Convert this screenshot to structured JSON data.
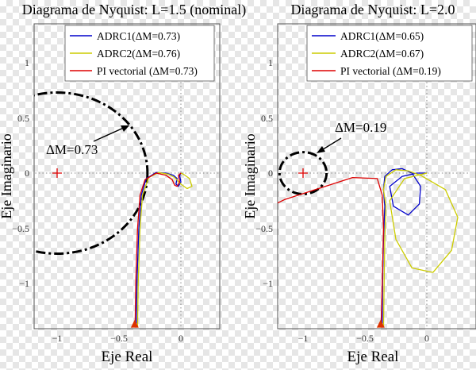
{
  "xlabel": "Eje Real",
  "ylabel": "Eje Imaginario",
  "chart_data": [
    {
      "type": "line",
      "title": "Diagrama de Nyquist: L=1.5 (nominal)",
      "xlabel": "Eje Real",
      "ylabel": "Eje Imaginario",
      "xlim": [
        -1.35,
        0.35
      ],
      "ylim": [
        -1.4,
        1.05
      ],
      "xticks": [
        -1,
        -0.5,
        0
      ],
      "xtick_labels": [
        "−1",
        "−0.5",
        "0"
      ],
      "yticks": [
        1,
        0.5,
        0,
        -0.5,
        -1
      ],
      "ytick_labels": [
        "1",
        "0.5",
        "0",
        "−0.5",
        "−1"
      ],
      "grid": "dotted lines at x=0 and y=0",
      "legend_position": "top",
      "critical_point": {
        "x": -1,
        "y": 0,
        "marker": "+"
      },
      "series": [
        {
          "name": "ADRC1(ΔM=0.73)",
          "color": "#0000cc",
          "points": [
            [
              -0.36,
              -1.4
            ],
            [
              -0.355,
              -1.0
            ],
            [
              -0.34,
              -0.5
            ],
            [
              -0.32,
              -0.2
            ],
            [
              -0.28,
              -0.05
            ],
            [
              -0.2,
              0.005
            ],
            [
              -0.12,
              0.0
            ],
            [
              -0.06,
              -0.02
            ],
            [
              -0.03,
              -0.05
            ],
            [
              -0.04,
              -0.1
            ],
            [
              -0.02,
              -0.12
            ],
            [
              0.0,
              -0.08
            ],
            [
              -0.01,
              -0.02
            ],
            [
              0.0,
              0.0
            ]
          ]
        },
        {
          "name": "ADRC2(ΔM=0.76)",
          "color": "#cccc00",
          "points": [
            [
              -0.35,
              -1.4
            ],
            [
              -0.345,
              -1.0
            ],
            [
              -0.33,
              -0.5
            ],
            [
              -0.31,
              -0.2
            ],
            [
              -0.26,
              -0.04
            ],
            [
              -0.18,
              0.005
            ],
            [
              -0.1,
              -0.01
            ],
            [
              -0.05,
              -0.04
            ],
            [
              0.0,
              -0.1
            ],
            [
              0.05,
              -0.14
            ],
            [
              0.09,
              -0.12
            ],
            [
              0.07,
              -0.05
            ],
            [
              0.02,
              -0.01
            ],
            [
              0.0,
              0.0
            ]
          ]
        },
        {
          "name": "PI vectorial (ΔM=0.73)",
          "color": "#dd0000",
          "points": [
            [
              -0.37,
              -1.4
            ],
            [
              -0.365,
              -1.0
            ],
            [
              -0.35,
              -0.5
            ],
            [
              -0.33,
              -0.2
            ],
            [
              -0.29,
              -0.06
            ],
            [
              -0.2,
              0.0
            ],
            [
              -0.12,
              -0.02
            ],
            [
              -0.07,
              -0.06
            ],
            [
              -0.05,
              -0.11
            ],
            [
              -0.03,
              -0.12
            ],
            [
              -0.01,
              -0.08
            ],
            [
              -0.02,
              -0.02
            ],
            [
              0.0,
              0.0
            ]
          ]
        }
      ],
      "margin_circle": {
        "center": [
          -1,
          0
        ],
        "radius": 0.73,
        "label": "ΔM=0.73",
        "label_at": [
          -1.12,
          0.2
        ]
      }
    },
    {
      "type": "line",
      "title": "Diagrama de Nyquist: L=2.0",
      "xlabel": "Eje Real",
      "ylabel": "Eje Imaginario",
      "xlim": [
        -1.35,
        0.35
      ],
      "ylim": [
        -1.4,
        1.05
      ],
      "xticks": [
        -1,
        -0.5,
        0
      ],
      "xtick_labels": [
        "−1",
        "−0.5",
        "0"
      ],
      "yticks": [
        1,
        0.5,
        0,
        -0.5,
        -1
      ],
      "ytick_labels": [
        "1",
        "0.5",
        "0",
        "−0.5",
        "−1"
      ],
      "grid": "dotted lines at x=0 and y=0",
      "legend_position": "top",
      "critical_point": {
        "x": -1,
        "y": 0,
        "marker": "+"
      },
      "series": [
        {
          "name": "ADRC1(ΔM=0.65)",
          "color": "#0000cc",
          "points": [
            [
              -0.36,
              -1.4
            ],
            [
              -0.358,
              -1.0
            ],
            [
              -0.35,
              -0.6
            ],
            [
              -0.34,
              -0.3
            ],
            [
              -0.35,
              -0.15
            ],
            [
              -0.34,
              -0.03
            ],
            [
              -0.28,
              0.03
            ],
            [
              -0.2,
              0.04
            ],
            [
              -0.12,
              0.0
            ],
            [
              -0.05,
              -0.12
            ],
            [
              -0.06,
              -0.28
            ],
            [
              -0.15,
              -0.38
            ],
            [
              -0.27,
              -0.3
            ],
            [
              -0.3,
              -0.12
            ],
            [
              -0.2,
              -0.03
            ],
            [
              -0.08,
              0.0
            ],
            [
              0.0,
              0.0
            ]
          ]
        },
        {
          "name": "ADRC2(ΔM=0.67)",
          "color": "#cccc00",
          "points": [
            [
              -0.35,
              -1.4
            ],
            [
              -0.345,
              -1.0
            ],
            [
              -0.34,
              -0.6
            ],
            [
              -0.33,
              -0.3
            ],
            [
              -0.35,
              -0.15
            ],
            [
              -0.33,
              -0.03
            ],
            [
              -0.25,
              0.03
            ],
            [
              -0.15,
              0.02
            ],
            [
              -0.05,
              -0.02
            ],
            [
              0.15,
              -0.15
            ],
            [
              0.25,
              -0.4
            ],
            [
              0.2,
              -0.7
            ],
            [
              0.05,
              -0.9
            ],
            [
              -0.12,
              -0.86
            ],
            [
              -0.25,
              -0.6
            ],
            [
              -0.3,
              -0.25
            ],
            [
              -0.18,
              -0.05
            ],
            [
              0.0,
              0.0
            ]
          ]
        },
        {
          "name": "PI vectorial (ΔM=0.19)",
          "color": "#dd0000",
          "points": [
            [
              -0.37,
              -1.4
            ],
            [
              -0.36,
              -1.0
            ],
            [
              -0.35,
              -0.5
            ],
            [
              -0.36,
              -0.2
            ],
            [
              -0.4,
              -0.05
            ],
            [
              -0.6,
              -0.04
            ],
            [
              -0.9,
              -0.15
            ],
            [
              -1.15,
              -0.24
            ],
            [
              -1.35,
              -0.35
            ]
          ]
        }
      ],
      "margin_circle": {
        "center": [
          -1,
          0
        ],
        "radius": 0.19,
        "label": "ΔM=0.19",
        "label_at": [
          -0.7,
          0.4
        ]
      }
    }
  ],
  "colors": {
    "adrc1": "#0000cc",
    "adrc2": "#cccc00",
    "pi": "#dd0000",
    "critical": "#dd0000"
  }
}
